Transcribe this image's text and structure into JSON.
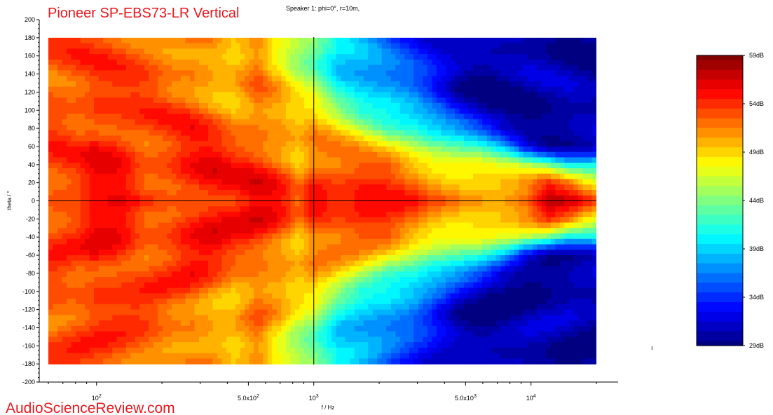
{
  "chart_data": {
    "type": "heatmap",
    "title": "Pioneer SP-EBS73-LR Vertical",
    "subtitle": "Speaker 1: phi=0°, r=10m,",
    "xlabel": "f / Hz",
    "ylabel": "theta / °",
    "x_scale": "log",
    "xlim": [
      60,
      20000
    ],
    "ylim": [
      -200,
      200
    ],
    "data_xlim": [
      60,
      20000
    ],
    "data_ylim": [
      -180,
      180
    ],
    "x_ticks": [
      {
        "value": 100,
        "label_base": "10",
        "label_exp": "2"
      },
      {
        "value": 500,
        "label_base": "5.0x10",
        "label_exp": "2"
      },
      {
        "value": 1000,
        "label_base": "10",
        "label_exp": "3"
      },
      {
        "value": 5000,
        "label_base": "5.0x10",
        "label_exp": "3"
      },
      {
        "value": 10000,
        "label_base": "10",
        "label_exp": "4"
      }
    ],
    "y_ticks": [
      200,
      180,
      160,
      140,
      120,
      100,
      80,
      60,
      40,
      20,
      0,
      -20,
      -40,
      -60,
      -80,
      -100,
      -120,
      -140,
      -160,
      -180,
      -200
    ],
    "crosshair": {
      "x": 1000,
      "y": 0
    },
    "colorbar": {
      "min": 29,
      "max": 59,
      "labels": [
        "59dB",
        "54dB",
        "49dB",
        "44dB",
        "39dB",
        "34dB",
        "29dB"
      ],
      "label_values": [
        59,
        54,
        49,
        44,
        39,
        34,
        29
      ],
      "colors": [
        "#000080",
        "#0000ff",
        "#0080ff",
        "#00ffff",
        "#80ff80",
        "#ffff00",
        "#ff8000",
        "#ff0000",
        "#800000"
      ]
    },
    "level_field": {
      "description_values_dB": "Estimated SPL levels at sampled (frequency Hz, theta deg) points",
      "freqs": [
        60,
        80,
        100,
        130,
        170,
        220,
        280,
        350,
        430,
        550,
        700,
        850,
        1000,
        1300,
        1700,
        2200,
        2800,
        3500,
        4500,
        5800,
        7500,
        9500,
        12000,
        15000,
        20000
      ],
      "thetas": [
        0,
        20,
        40,
        60,
        80,
        100,
        120,
        140,
        160,
        180
      ],
      "grid": [
        [
          53,
          53,
          54,
          54,
          53,
          54,
          55,
          55,
          54,
          55,
          54,
          52,
          56,
          55,
          55,
          54,
          53,
          52,
          52,
          52,
          52,
          53,
          57,
          57,
          55
        ],
        [
          53,
          53,
          55,
          55,
          53,
          54,
          55,
          55,
          54,
          55,
          54,
          52,
          55,
          54,
          54,
          53,
          52,
          51,
          51,
          51,
          50,
          50,
          53,
          51,
          47
        ],
        [
          53,
          53,
          55,
          55,
          53,
          54,
          55,
          55,
          54,
          54,
          53,
          51,
          53,
          52,
          52,
          52,
          50,
          49,
          48,
          47,
          45,
          44,
          43,
          41,
          42
        ],
        [
          53,
          53,
          55,
          55,
          53,
          53,
          54,
          54,
          53,
          53,
          52,
          50,
          51,
          50,
          49,
          48,
          47,
          45,
          43,
          41,
          38,
          33,
          31,
          31,
          31
        ],
        [
          53,
          53,
          54,
          54,
          53,
          53,
          54,
          53,
          52,
          52,
          51,
          49,
          50,
          48,
          46,
          44,
          43,
          40,
          37,
          34,
          31,
          30,
          30,
          30,
          30
        ],
        [
          53,
          53,
          54,
          53,
          53,
          53,
          53,
          52,
          51,
          52,
          50,
          48,
          48,
          45,
          42,
          41,
          38,
          35,
          32,
          30,
          30,
          30,
          30,
          30,
          30
        ],
        [
          53,
          53,
          54,
          53,
          53,
          52,
          52,
          51,
          50,
          52,
          49,
          47,
          46,
          42,
          40,
          38,
          36,
          33,
          30,
          30,
          30,
          30,
          30,
          30,
          30
        ],
        [
          53,
          53,
          53,
          53,
          53,
          52,
          52,
          50,
          49,
          51,
          48,
          46,
          45,
          40,
          38,
          36,
          35,
          34,
          32,
          30,
          30,
          30,
          30,
          30,
          30
        ],
        [
          53,
          53,
          53,
          53,
          53,
          52,
          51,
          50,
          48,
          51,
          48,
          46,
          44,
          39,
          37,
          35,
          34,
          33,
          32,
          31,
          30,
          30,
          30,
          30,
          30
        ],
        [
          53,
          53,
          53,
          53,
          53,
          52,
          51,
          50,
          48,
          51,
          48,
          46,
          44,
          39,
          37,
          35,
          34,
          33,
          32,
          31,
          30,
          30,
          30,
          30,
          30
        ]
      ]
    }
  },
  "watermark": "AudioScienceReview.com"
}
